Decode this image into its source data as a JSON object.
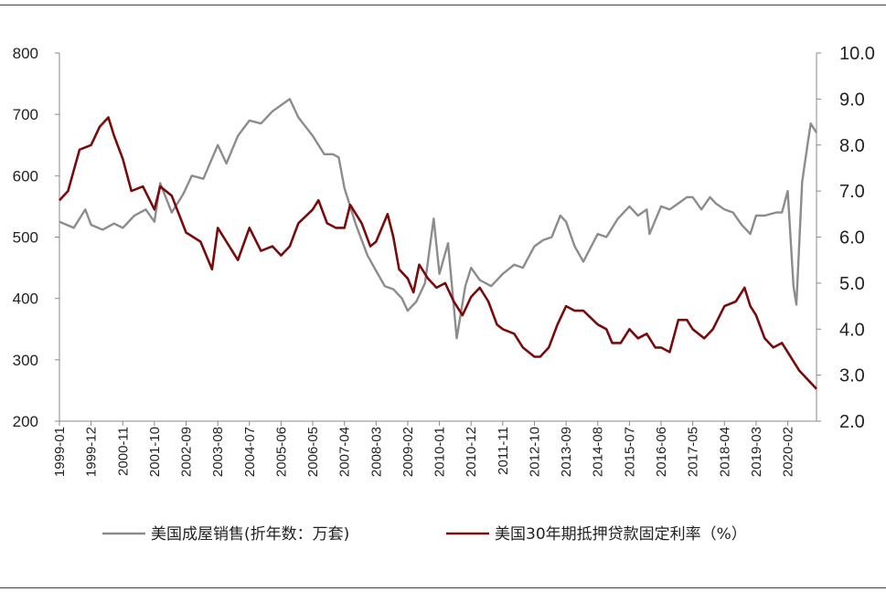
{
  "chart_data": {
    "type": "line",
    "title": "",
    "x_tick_labels": [
      "1999-01",
      "1999-12",
      "2000-11",
      "2001-10",
      "2002-09",
      "2003-08",
      "2004-07",
      "2005-06",
      "2006-05",
      "2007-04",
      "2008-03",
      "2009-02",
      "2010-01",
      "2010-12",
      "2011-11",
      "2012-10",
      "2013-09",
      "2014-08",
      "2015-07",
      "2016-06",
      "2017-05",
      "2018-04",
      "2019-03",
      "2020-02"
    ],
    "x_range": [
      "1999-01",
      "2020-12"
    ],
    "y_left": {
      "ylim": [
        200,
        800
      ],
      "ticks": [
        "200",
        "300",
        "400",
        "500",
        "600",
        "700",
        "800"
      ]
    },
    "y_right": {
      "ylim": [
        2.0,
        10.0
      ],
      "ticks": [
        "2.0",
        "3.0",
        "4.0",
        "5.0",
        "6.0",
        "7.0",
        "8.0",
        "9.0",
        "10.0"
      ]
    },
    "grid": false,
    "legend_position": "bottom",
    "series": [
      {
        "name": "美国成屋销售(折年数：万套)",
        "axis": "left",
        "color": "#8c8c8c",
        "points": [
          [
            "1999-01",
            525
          ],
          [
            "1999-06",
            515
          ],
          [
            "1999-10",
            545
          ],
          [
            "1999-12",
            520
          ],
          [
            "2000-04",
            512
          ],
          [
            "2000-08",
            522
          ],
          [
            "2000-11",
            515
          ],
          [
            "2001-03",
            535
          ],
          [
            "2001-07",
            545
          ],
          [
            "2001-10",
            525
          ],
          [
            "2001-12",
            588
          ],
          [
            "2002-04",
            540
          ],
          [
            "2002-08",
            570
          ],
          [
            "2002-11",
            600
          ],
          [
            "2003-03",
            595
          ],
          [
            "2003-08",
            650
          ],
          [
            "2003-11",
            620
          ],
          [
            "2004-03",
            665
          ],
          [
            "2004-07",
            690
          ],
          [
            "2004-11",
            685
          ],
          [
            "2005-03",
            705
          ],
          [
            "2005-06",
            715
          ],
          [
            "2005-09",
            725
          ],
          [
            "2005-12",
            695
          ],
          [
            "2006-05",
            665
          ],
          [
            "2006-09",
            635
          ],
          [
            "2006-12",
            635
          ],
          [
            "2007-02",
            630
          ],
          [
            "2007-04",
            580
          ],
          [
            "2007-08",
            520
          ],
          [
            "2007-12",
            470
          ],
          [
            "2008-03",
            445
          ],
          [
            "2008-06",
            420
          ],
          [
            "2008-09",
            415
          ],
          [
            "2008-12",
            400
          ],
          [
            "2009-02",
            380
          ],
          [
            "2009-05",
            395
          ],
          [
            "2009-08",
            425
          ],
          [
            "2009-11",
            530
          ],
          [
            "2010-01",
            440
          ],
          [
            "2010-04",
            490
          ],
          [
            "2010-07",
            335
          ],
          [
            "2010-10",
            420
          ],
          [
            "2010-12",
            450
          ],
          [
            "2011-03",
            430
          ],
          [
            "2011-07",
            420
          ],
          [
            "2011-11",
            440
          ],
          [
            "2012-03",
            455
          ],
          [
            "2012-06",
            450
          ],
          [
            "2012-10",
            485
          ],
          [
            "2013-01",
            495
          ],
          [
            "2013-04",
            500
          ],
          [
            "2013-07",
            535
          ],
          [
            "2013-09",
            525
          ],
          [
            "2013-12",
            485
          ],
          [
            "2014-03",
            460
          ],
          [
            "2014-08",
            505
          ],
          [
            "2014-11",
            500
          ],
          [
            "2015-03",
            530
          ],
          [
            "2015-07",
            550
          ],
          [
            "2015-10",
            535
          ],
          [
            "2016-01",
            545
          ],
          [
            "2016-02",
            505
          ],
          [
            "2016-06",
            550
          ],
          [
            "2016-09",
            545
          ],
          [
            "2016-12",
            555
          ],
          [
            "2017-03",
            565
          ],
          [
            "2017-05",
            565
          ],
          [
            "2017-08",
            545
          ],
          [
            "2017-11",
            565
          ],
          [
            "2018-01",
            555
          ],
          [
            "2018-04",
            545
          ],
          [
            "2018-07",
            540
          ],
          [
            "2018-10",
            520
          ],
          [
            "2019-01",
            505
          ],
          [
            "2019-03",
            535
          ],
          [
            "2019-06",
            535
          ],
          [
            "2019-10",
            540
          ],
          [
            "2019-12",
            540
          ],
          [
            "2020-02",
            575
          ],
          [
            "2020-04",
            420
          ],
          [
            "2020-05",
            390
          ],
          [
            "2020-07",
            590
          ],
          [
            "2020-09",
            655
          ],
          [
            "2020-10",
            685
          ],
          [
            "2020-12",
            670
          ]
        ]
      },
      {
        "name": "美国30年期抵押贷款固定利率（%）",
        "axis": "right",
        "color": "#7a0b0b",
        "points": [
          [
            "1999-01",
            6.8
          ],
          [
            "1999-04",
            7.0
          ],
          [
            "1999-08",
            7.9
          ],
          [
            "1999-12",
            8.0
          ],
          [
            "2000-03",
            8.4
          ],
          [
            "2000-06",
            8.6
          ],
          [
            "2000-08",
            8.2
          ],
          [
            "2000-11",
            7.7
          ],
          [
            "2001-02",
            7.0
          ],
          [
            "2001-06",
            7.1
          ],
          [
            "2001-10",
            6.6
          ],
          [
            "2001-12",
            7.1
          ],
          [
            "2002-04",
            6.9
          ],
          [
            "2002-09",
            6.1
          ],
          [
            "2003-02",
            5.9
          ],
          [
            "2003-06",
            5.3
          ],
          [
            "2003-08",
            6.2
          ],
          [
            "2003-11",
            5.9
          ],
          [
            "2004-03",
            5.5
          ],
          [
            "2004-07",
            6.2
          ],
          [
            "2004-11",
            5.7
          ],
          [
            "2005-03",
            5.8
          ],
          [
            "2005-06",
            5.6
          ],
          [
            "2005-09",
            5.8
          ],
          [
            "2005-12",
            6.3
          ],
          [
            "2006-05",
            6.6
          ],
          [
            "2006-07",
            6.8
          ],
          [
            "2006-10",
            6.3
          ],
          [
            "2007-01",
            6.2
          ],
          [
            "2007-04",
            6.2
          ],
          [
            "2007-06",
            6.7
          ],
          [
            "2007-10",
            6.3
          ],
          [
            "2008-01",
            5.8
          ],
          [
            "2008-03",
            5.9
          ],
          [
            "2008-07",
            6.5
          ],
          [
            "2008-09",
            6.0
          ],
          [
            "2008-11",
            5.3
          ],
          [
            "2009-02",
            5.1
          ],
          [
            "2009-04",
            4.8
          ],
          [
            "2009-06",
            5.4
          ],
          [
            "2009-09",
            5.1
          ],
          [
            "2009-12",
            4.9
          ],
          [
            "2010-03",
            5.0
          ],
          [
            "2010-06",
            4.6
          ],
          [
            "2010-09",
            4.3
          ],
          [
            "2010-12",
            4.7
          ],
          [
            "2011-03",
            4.9
          ],
          [
            "2011-06",
            4.6
          ],
          [
            "2011-09",
            4.1
          ],
          [
            "2011-11",
            4.0
          ],
          [
            "2012-03",
            3.9
          ],
          [
            "2012-06",
            3.6
          ],
          [
            "2012-10",
            3.4
          ],
          [
            "2012-12",
            3.4
          ],
          [
            "2013-03",
            3.6
          ],
          [
            "2013-06",
            4.1
          ],
          [
            "2013-09",
            4.5
          ],
          [
            "2013-12",
            4.4
          ],
          [
            "2014-03",
            4.4
          ],
          [
            "2014-08",
            4.1
          ],
          [
            "2014-11",
            4.0
          ],
          [
            "2015-01",
            3.7
          ],
          [
            "2015-04",
            3.7
          ],
          [
            "2015-07",
            4.0
          ],
          [
            "2015-10",
            3.8
          ],
          [
            "2016-01",
            3.9
          ],
          [
            "2016-04",
            3.6
          ],
          [
            "2016-06",
            3.6
          ],
          [
            "2016-09",
            3.5
          ],
          [
            "2016-12",
            4.2
          ],
          [
            "2017-03",
            4.2
          ],
          [
            "2017-05",
            4.0
          ],
          [
            "2017-09",
            3.8
          ],
          [
            "2017-12",
            4.0
          ],
          [
            "2018-04",
            4.5
          ],
          [
            "2018-08",
            4.6
          ],
          [
            "2018-11",
            4.9
          ],
          [
            "2019-01",
            4.5
          ],
          [
            "2019-03",
            4.3
          ],
          [
            "2019-06",
            3.8
          ],
          [
            "2019-09",
            3.6
          ],
          [
            "2019-12",
            3.7
          ],
          [
            "2020-02",
            3.5
          ],
          [
            "2020-06",
            3.1
          ],
          [
            "2020-09",
            2.9
          ],
          [
            "2020-12",
            2.7
          ]
        ]
      }
    ]
  }
}
